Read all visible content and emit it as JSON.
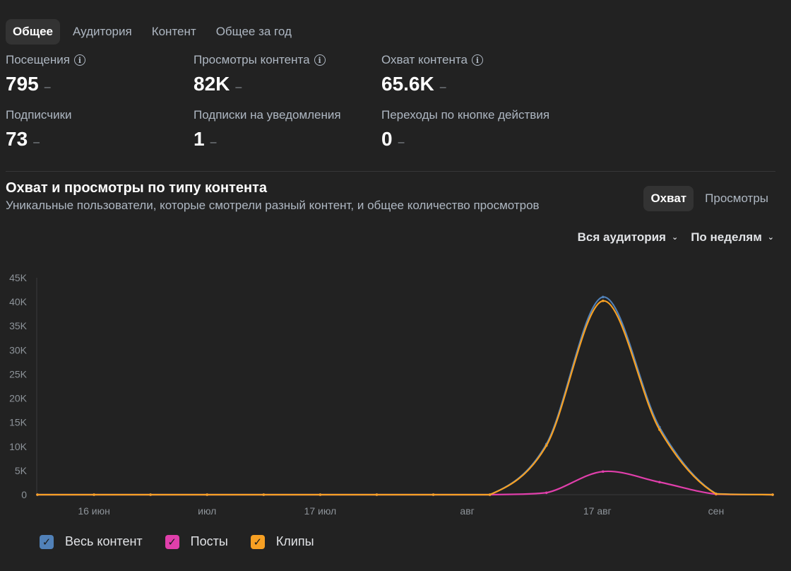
{
  "tabs": [
    "Общее",
    "Аудитория",
    "Контент",
    "Общее за год"
  ],
  "stats": [
    {
      "label": "Посещения",
      "value": "795",
      "dash": "–",
      "info": true
    },
    {
      "label": "Просмотры контента",
      "value": "82K",
      "dash": "–",
      "info": true
    },
    {
      "label": "Охват контента",
      "value": "65.6K",
      "dash": "–",
      "info": true
    },
    {
      "label": "Подписчики",
      "value": "73",
      "dash": "–",
      "info": false
    },
    {
      "label": "Подписки на уведомления",
      "value": "1",
      "dash": "–",
      "info": false
    },
    {
      "label": "Переходы по кнопке действия",
      "value": "0",
      "dash": "–",
      "info": false
    }
  ],
  "section": {
    "title": "Охват и просмотры по типу контента",
    "subtitle": "Уникальные пользователи, которые смотрели разный контент, и общее количество просмотров"
  },
  "segment": [
    "Охват",
    "Просмотры"
  ],
  "filters": {
    "audience": "Вся аудитория",
    "period": "По неделям"
  },
  "colors": {
    "all": "#5181b8",
    "posts": "#e03fab",
    "clips": "#f7a023",
    "bg": "#222222"
  },
  "chart_data": {
    "type": "line",
    "x": [
      "w1",
      "w2",
      "w3",
      "w4",
      "w5",
      "w6",
      "w7",
      "w8",
      "w9",
      "w10",
      "w11",
      "w12",
      "w13",
      "w14"
    ],
    "x_tick_labels": [
      {
        "i": 1,
        "label": "16 июн"
      },
      {
        "i": 3,
        "label": "июл"
      },
      {
        "i": 5,
        "label": "17 июл"
      },
      {
        "i": 7.6,
        "label": "авг"
      },
      {
        "i": 9.9,
        "label": "17 авг"
      },
      {
        "i": 12,
        "label": "сен"
      }
    ],
    "y_ticks": [
      "0",
      "5K",
      "10K",
      "15K",
      "20K",
      "25K",
      "30K",
      "35K",
      "40K",
      "45K"
    ],
    "ylim": [
      0,
      45000
    ],
    "series": [
      {
        "name": "Весь контент",
        "color": "#5181b8",
        "values": [
          0,
          0,
          0,
          0,
          0,
          0,
          0,
          0,
          0,
          10500,
          41000,
          14000,
          200,
          0
        ]
      },
      {
        "name": "Посты",
        "color": "#e03fab",
        "values": [
          0,
          0,
          0,
          0,
          0,
          0,
          0,
          0,
          0,
          400,
          4800,
          2600,
          100,
          0
        ]
      },
      {
        "name": "Клипы",
        "color": "#f7a023",
        "values": [
          0,
          0,
          0,
          0,
          0,
          0,
          0,
          0,
          0,
          10200,
          40200,
          13500,
          150,
          0
        ]
      }
    ]
  }
}
